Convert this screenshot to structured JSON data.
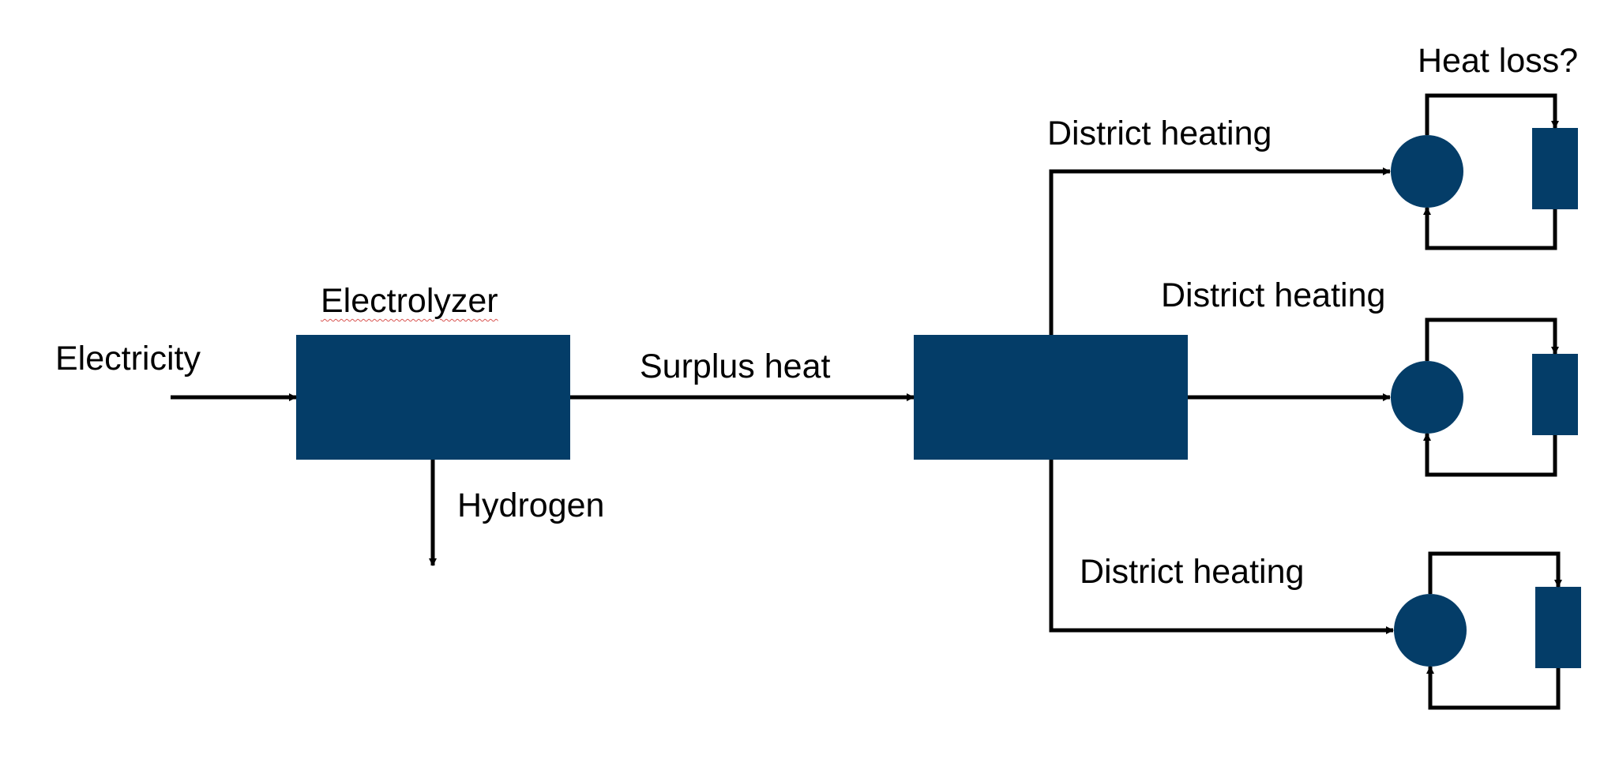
{
  "colors": {
    "block": "#043d68",
    "line": "#000000",
    "background": "#ffffff"
  },
  "labels": {
    "electricity": "Electricity",
    "electrolyzer": "Electrolyzer",
    "surplus_heat": "Surplus heat",
    "hydrogen": "Hydrogen",
    "district_heating_top": "District heating",
    "district_heating_middle": "District heating",
    "district_heating_bottom": "District heating",
    "heat_loss": "Heat loss?"
  }
}
